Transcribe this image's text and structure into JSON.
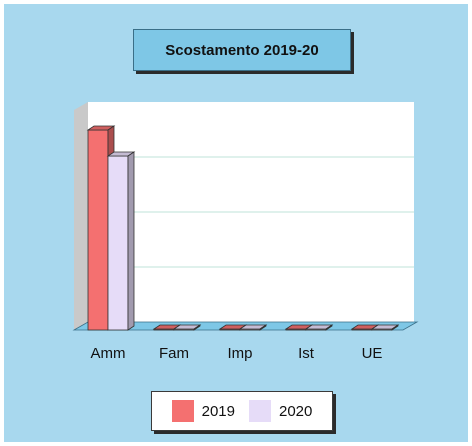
{
  "chart_data": {
    "type": "bar",
    "title": "Scostamento 2019-20",
    "categories": [
      "Amm",
      "Fam",
      "Imp",
      "Ist",
      "UE"
    ],
    "series": [
      {
        "name": "2019",
        "color": "#f47070",
        "values": [
          100,
          0,
          0,
          0,
          0
        ]
      },
      {
        "name": "2020",
        "color": "#e6dcf8",
        "values": [
          87,
          0,
          0,
          0,
          0
        ]
      }
    ],
    "ylim": [
      0,
      110
    ],
    "grid": true,
    "legend_position": "bottom"
  }
}
